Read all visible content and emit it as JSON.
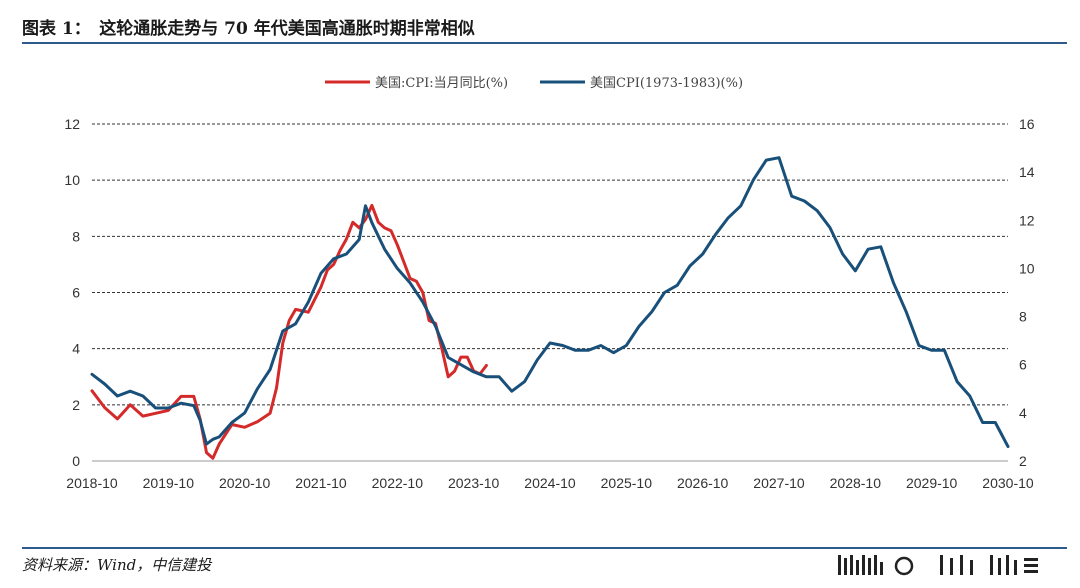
{
  "header": {
    "title": "图表 1：　这轮通胀走势与 70 年代美国高通胀时期非常相似"
  },
  "footer": {
    "source": "资料来源：Wind，中信建投"
  },
  "colors": {
    "accent": "#2f5b8c",
    "series_red": "#d42a2a",
    "series_blue": "#19507a",
    "grid": "#333333"
  },
  "chart_data": {
    "type": "line",
    "grid": true,
    "legend_placement": "top-center",
    "x_tick_labels": [
      "2018-10",
      "2019-10",
      "2020-10",
      "2021-10",
      "2022-10",
      "2023-10",
      "2024-10",
      "2025-10",
      "2026-10",
      "2027-10",
      "2028-10",
      "2029-10",
      "2030-10"
    ],
    "x_range": [
      "2018-10",
      "2030-10"
    ],
    "y_left": {
      "ticks": [
        0,
        2,
        4,
        6,
        8,
        10,
        12
      ],
      "range": [
        0,
        12
      ]
    },
    "y_right": {
      "ticks": [
        2,
        4,
        6,
        8,
        10,
        12,
        14,
        16
      ],
      "range": [
        2,
        16
      ]
    },
    "series": [
      {
        "name": "美国:CPI:当月同比(%)",
        "color": "#d42a2a",
        "axis": "left",
        "points": [
          [
            "2018-10",
            2.5
          ],
          [
            "2018-12",
            1.9
          ],
          [
            "2019-02",
            1.5
          ],
          [
            "2019-04",
            2.0
          ],
          [
            "2019-06",
            1.6
          ],
          [
            "2019-08",
            1.7
          ],
          [
            "2019-10",
            1.8
          ],
          [
            "2019-12",
            2.3
          ],
          [
            "2020-02",
            2.3
          ],
          [
            "2020-03",
            1.5
          ],
          [
            "2020-04",
            0.3
          ],
          [
            "2020-05",
            0.1
          ],
          [
            "2020-06",
            0.6
          ],
          [
            "2020-08",
            1.3
          ],
          [
            "2020-10",
            1.2
          ],
          [
            "2020-12",
            1.4
          ],
          [
            "2021-02",
            1.7
          ],
          [
            "2021-03",
            2.6
          ],
          [
            "2021-04",
            4.2
          ],
          [
            "2021-05",
            5.0
          ],
          [
            "2021-06",
            5.4
          ],
          [
            "2021-08",
            5.3
          ],
          [
            "2021-10",
            6.2
          ],
          [
            "2021-11",
            6.8
          ],
          [
            "2021-12",
            7.0
          ],
          [
            "2022-01",
            7.5
          ],
          [
            "2022-02",
            7.9
          ],
          [
            "2022-03",
            8.5
          ],
          [
            "2022-04",
            8.3
          ],
          [
            "2022-05",
            8.6
          ],
          [
            "2022-06",
            9.1
          ],
          [
            "2022-07",
            8.5
          ],
          [
            "2022-08",
            8.3
          ],
          [
            "2022-09",
            8.2
          ],
          [
            "2022-10",
            7.7
          ],
          [
            "2022-11",
            7.1
          ],
          [
            "2022-12",
            6.5
          ],
          [
            "2023-01",
            6.4
          ],
          [
            "2023-02",
            6.0
          ],
          [
            "2023-03",
            5.0
          ],
          [
            "2023-04",
            4.9
          ],
          [
            "2023-05",
            4.0
          ],
          [
            "2023-06",
            3.0
          ],
          [
            "2023-07",
            3.2
          ],
          [
            "2023-08",
            3.7
          ],
          [
            "2023-09",
            3.7
          ],
          [
            "2023-10",
            3.2
          ],
          [
            "2023-11",
            3.1
          ],
          [
            "2023-12",
            3.4
          ]
        ]
      },
      {
        "name": "美国CPI(1973-1983)(%)",
        "color": "#19507a",
        "axis": "right",
        "points": [
          [
            "2018-10",
            5.6
          ],
          [
            "2018-12",
            5.2
          ],
          [
            "2019-02",
            4.7
          ],
          [
            "2019-04",
            4.9
          ],
          [
            "2019-06",
            4.7
          ],
          [
            "2019-08",
            4.2
          ],
          [
            "2019-10",
            4.2
          ],
          [
            "2019-12",
            4.4
          ],
          [
            "2020-02",
            4.3
          ],
          [
            "2020-03",
            3.7
          ],
          [
            "2020-04",
            2.7
          ],
          [
            "2020-05",
            2.9
          ],
          [
            "2020-06",
            3.0
          ],
          [
            "2020-08",
            3.6
          ],
          [
            "2020-10",
            4.0
          ],
          [
            "2020-12",
            5.0
          ],
          [
            "2021-02",
            5.8
          ],
          [
            "2021-04",
            7.4
          ],
          [
            "2021-06",
            7.7
          ],
          [
            "2021-08",
            8.6
          ],
          [
            "2021-10",
            9.8
          ],
          [
            "2021-12",
            10.4
          ],
          [
            "2022-02",
            10.6
          ],
          [
            "2022-04",
            11.2
          ],
          [
            "2022-05",
            12.6
          ],
          [
            "2022-06",
            11.9
          ],
          [
            "2022-08",
            10.8
          ],
          [
            "2022-10",
            10.0
          ],
          [
            "2022-12",
            9.4
          ],
          [
            "2023-02",
            8.6
          ],
          [
            "2023-04",
            7.6
          ],
          [
            "2023-06",
            6.3
          ],
          [
            "2023-08",
            6.0
          ],
          [
            "2023-10",
            5.7
          ],
          [
            "2023-12",
            5.5
          ],
          [
            "2024-02",
            5.5
          ],
          [
            "2024-04",
            4.9
          ],
          [
            "2024-06",
            5.3
          ],
          [
            "2024-08",
            6.2
          ],
          [
            "2024-10",
            6.9
          ],
          [
            "2024-12",
            6.8
          ],
          [
            "2025-02",
            6.6
          ],
          [
            "2025-04",
            6.6
          ],
          [
            "2025-06",
            6.8
          ],
          [
            "2025-08",
            6.5
          ],
          [
            "2025-10",
            6.8
          ],
          [
            "2025-12",
            7.6
          ],
          [
            "2026-02",
            8.2
          ],
          [
            "2026-04",
            9.0
          ],
          [
            "2026-06",
            9.3
          ],
          [
            "2026-08",
            10.1
          ],
          [
            "2026-10",
            10.6
          ],
          [
            "2026-12",
            11.4
          ],
          [
            "2027-02",
            12.1
          ],
          [
            "2027-04",
            12.6
          ],
          [
            "2027-06",
            13.7
          ],
          [
            "2027-08",
            14.5
          ],
          [
            "2027-10",
            14.6
          ],
          [
            "2027-12",
            13.0
          ],
          [
            "2028-02",
            12.8
          ],
          [
            "2028-04",
            12.4
          ],
          [
            "2028-06",
            11.7
          ],
          [
            "2028-08",
            10.6
          ],
          [
            "2028-10",
            9.9
          ],
          [
            "2028-12",
            10.8
          ],
          [
            "2029-02",
            10.9
          ],
          [
            "2029-04",
            9.4
          ],
          [
            "2029-06",
            8.2
          ],
          [
            "2029-08",
            6.8
          ],
          [
            "2029-10",
            6.6
          ],
          [
            "2029-12",
            6.6
          ],
          [
            "2030-02",
            5.3
          ],
          [
            "2030-04",
            4.7
          ],
          [
            "2030-06",
            3.6
          ],
          [
            "2030-08",
            3.6
          ],
          [
            "2030-10",
            2.6
          ]
        ]
      }
    ]
  }
}
